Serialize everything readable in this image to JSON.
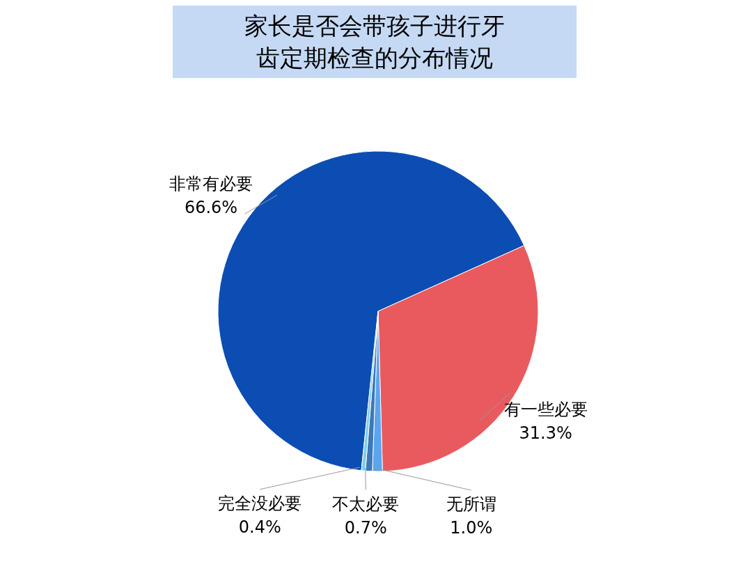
{
  "chart_data": {
    "type": "pie",
    "title": "家长是否会带孩子进行牙齿定期检查的分布情况",
    "categories": [
      "非常有必要",
      "有一些必要",
      "无所谓",
      "不太必要",
      "完全没必要"
    ],
    "values": [
      66.6,
      31.3,
      1.0,
      0.7,
      0.4
    ],
    "value_labels": [
      "66.6%",
      "31.3%",
      "1.0%",
      "0.7%",
      "0.4%"
    ],
    "colors": [
      "#0c4db3",
      "#e95a5f",
      "#5aa5ee",
      "#3f78b8",
      "#7fd0e8"
    ]
  }
}
